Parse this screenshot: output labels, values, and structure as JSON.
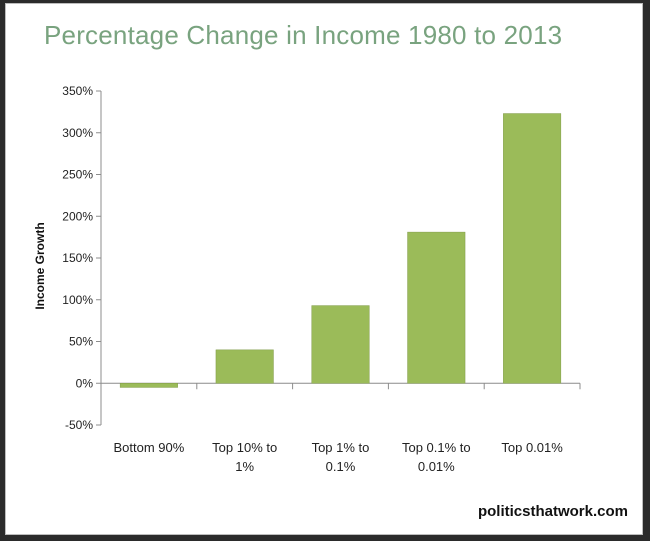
{
  "page": {
    "footer": "politicsthatwork.com"
  },
  "colors": {
    "bar": "#9bbb59",
    "bar_border": "#7f9a47",
    "title": "#79a37f"
  },
  "chart_data": {
    "type": "bar",
    "title": "Percentage Change in Income 1980 to 2013",
    "xlabel": "",
    "ylabel": "Income Growth",
    "categories": [
      [
        "Bottom 90%"
      ],
      [
        "Top 10% to",
        "1%"
      ],
      [
        "Top 1% to",
        "0.1%"
      ],
      [
        "Top 0.1% to",
        "0.01%"
      ],
      [
        "Top 0.01%"
      ]
    ],
    "values": [
      -5,
      40,
      93,
      181,
      323
    ],
    "ylim": [
      -50,
      350
    ],
    "yticks": [
      "-50%",
      "0%",
      "50%",
      "100%",
      "150%",
      "200%",
      "250%",
      "300%",
      "350%"
    ],
    "ytick_values": [
      -50,
      0,
      50,
      100,
      150,
      200,
      250,
      300,
      350
    ],
    "grid": false,
    "legend": "none"
  }
}
